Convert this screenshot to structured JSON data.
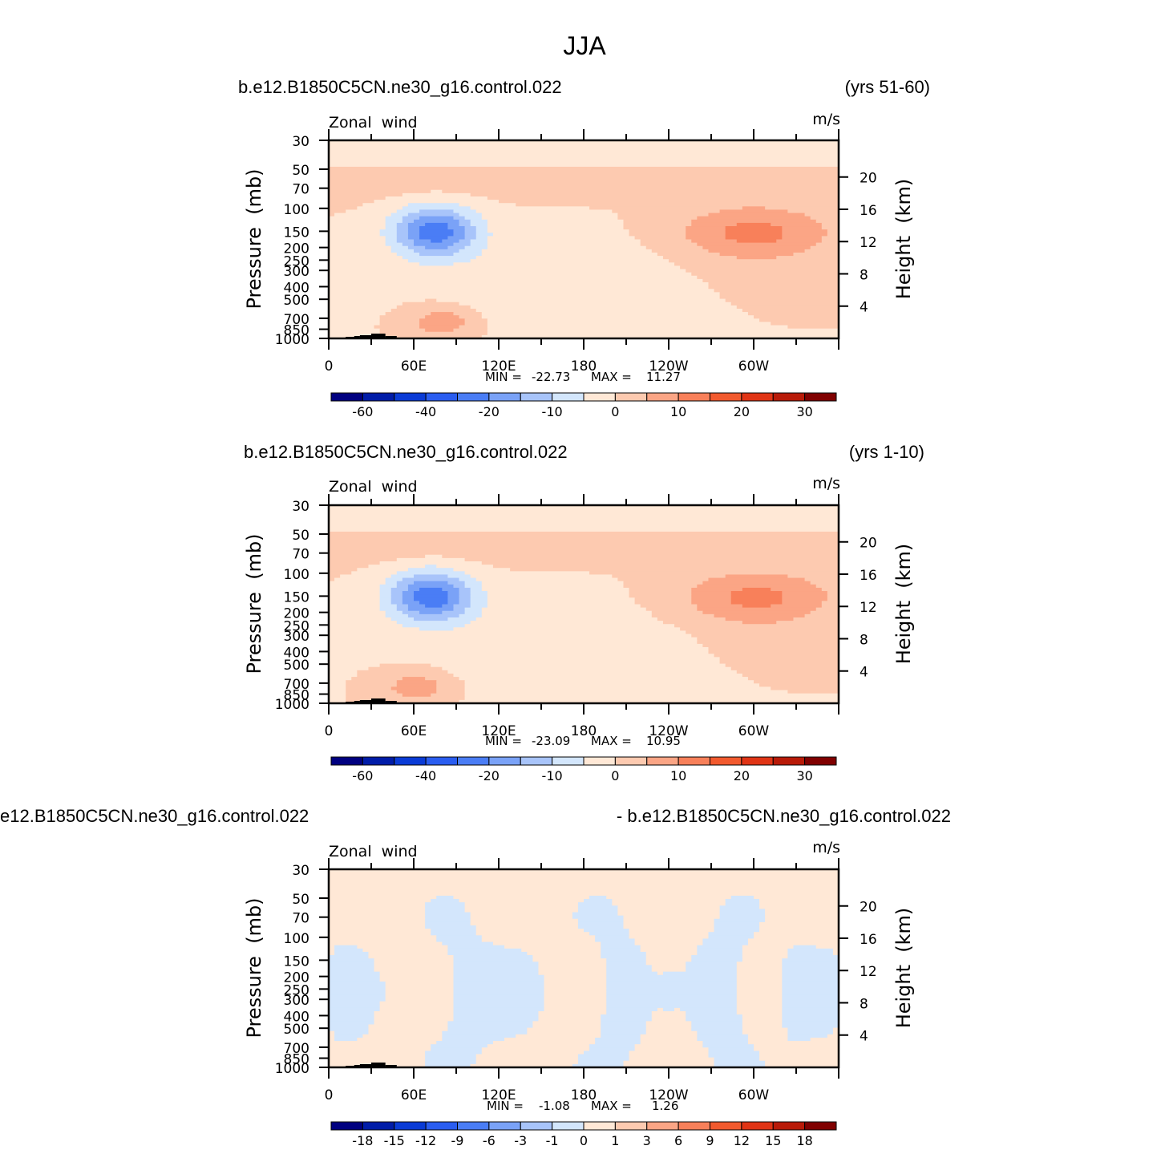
{
  "title": "JJA",
  "colors": {
    "div_main": [
      "#000080",
      "#001ca8",
      "#0a3bd6",
      "#2a5df0",
      "#4a7df5",
      "#7aa2f7",
      "#a8c4fa",
      "#d3e6fc",
      "#ffe8d6",
      "#fdcab0",
      "#fba585",
      "#f8805a",
      "#f25a2e",
      "#e03415",
      "#b81a08",
      "#800000"
    ],
    "div_diff": [
      "#000080",
      "#001ca8",
      "#0a3bd6",
      "#2a5df0",
      "#4a7df5",
      "#7aa2f7",
      "#a8c4fa",
      "#d3e6fc",
      "#ffe8d6",
      "#fdcab0",
      "#fba585",
      "#f8805a",
      "#f25a2e",
      "#e03415",
      "#b81a08",
      "#800000"
    ]
  },
  "chart_data": [
    {
      "type": "heatmap",
      "name": "panel-1",
      "title_left": "b.e12.B1850C5CN.ne30_g16.control.022",
      "title_right": "(yrs 51-60)",
      "variable": "Zonal  wind",
      "units": "m/s",
      "ylabel": "Pressure  (mb)",
      "ylabel_right": "Height  (km)",
      "y_ticks": [
        "30",
        "50",
        "70",
        "100",
        "150",
        "200",
        "250",
        "300",
        "400",
        "500",
        "700",
        "850",
        "1000"
      ],
      "y_tick_values": [
        30,
        50,
        70,
        100,
        150,
        200,
        250,
        300,
        400,
        500,
        700,
        850,
        1000
      ],
      "height_ticks": [
        "20",
        "16",
        "12",
        "8",
        "4"
      ],
      "height_values": [
        20,
        16,
        12,
        8,
        4
      ],
      "x_ticks": [
        "0",
        "60E",
        "120E",
        "180",
        "120W",
        "60W"
      ],
      "x_values": [
        0,
        60,
        120,
        180,
        240,
        300
      ],
      "xlim": [
        0,
        360
      ],
      "ylim": [
        1000,
        30
      ],
      "min_label": "MIN =",
      "min_value": "-22.73",
      "max_label": "MAX =",
      "max_value": "11.27",
      "colorbar_labels": [
        "-60",
        "-40",
        "-20",
        "-10",
        "0",
        "10",
        "20",
        "30"
      ],
      "colorbar_label_boundaries": [
        1,
        3,
        5,
        7,
        9,
        11,
        13,
        15
      ],
      "field": {
        "kind": "main",
        "strat_value": -3,
        "jet_east": {
          "lon": 75,
          "p": 150,
          "peak": -22.73
        },
        "jet_west": {
          "lon": 300,
          "p": 150,
          "peak": 11.27
        },
        "low_east": {
          "lon": 80,
          "p": 650,
          "peak": 9
        }
      }
    },
    {
      "type": "heatmap",
      "name": "panel-2",
      "title_left": "b.e12.B1850C5CN.ne30_g16.control.022",
      "title_right": "(yrs 1-10)",
      "variable": "Zonal  wind",
      "units": "m/s",
      "ylabel": "Pressure  (mb)",
      "ylabel_right": "Height  (km)",
      "y_ticks": [
        "30",
        "50",
        "70",
        "100",
        "150",
        "200",
        "250",
        "300",
        "400",
        "500",
        "700",
        "850",
        "1000"
      ],
      "y_tick_values": [
        30,
        50,
        70,
        100,
        150,
        200,
        250,
        300,
        400,
        500,
        700,
        850,
        1000
      ],
      "height_ticks": [
        "20",
        "16",
        "12",
        "8",
        "4"
      ],
      "height_values": [
        20,
        16,
        12,
        8,
        4
      ],
      "x_ticks": [
        "0",
        "60E",
        "120E",
        "180",
        "120W",
        "60W"
      ],
      "x_values": [
        0,
        60,
        120,
        180,
        240,
        300
      ],
      "xlim": [
        0,
        360
      ],
      "ylim": [
        1000,
        30
      ],
      "min_label": "MIN =",
      "min_value": "-23.09",
      "max_label": "MAX =",
      "max_value": "10.95",
      "colorbar_labels": [
        "-60",
        "-40",
        "-20",
        "-10",
        "0",
        "10",
        "20",
        "30"
      ],
      "colorbar_label_boundaries": [
        1,
        3,
        5,
        7,
        9,
        11,
        13,
        15
      ],
      "field": {
        "kind": "main",
        "strat_value": -3,
        "jet_east": {
          "lon": 72,
          "p": 150,
          "peak": -23.09
        },
        "jet_west": {
          "lon": 302,
          "p": 150,
          "peak": 10.95
        },
        "low_east": {
          "lon": 62,
          "p": 700,
          "peak": 9
        }
      }
    },
    {
      "type": "heatmap",
      "name": "panel-3",
      "title_left": "e12.B1850C5CN.ne30_g16.control.022",
      "title_right": "- b.e12.B1850C5CN.ne30_g16.control.022",
      "variable": "Zonal  wind",
      "units": "m/s",
      "ylabel": "Pressure  (mb)",
      "ylabel_right": "Height  (km)",
      "y_ticks": [
        "30",
        "50",
        "70",
        "100",
        "150",
        "200",
        "250",
        "300",
        "400",
        "500",
        "700",
        "850",
        "1000"
      ],
      "y_tick_values": [
        30,
        50,
        70,
        100,
        150,
        200,
        250,
        300,
        400,
        500,
        700,
        850,
        1000
      ],
      "height_ticks": [
        "20",
        "16",
        "12",
        "8",
        "4"
      ],
      "height_values": [
        20,
        16,
        12,
        8,
        4
      ],
      "x_ticks": [
        "0",
        "60E",
        "120E",
        "180",
        "120W",
        "60W"
      ],
      "x_values": [
        0,
        60,
        120,
        180,
        240,
        300
      ],
      "xlim": [
        0,
        360
      ],
      "ylim": [
        1000,
        30
      ],
      "min_label": "MIN =",
      "min_value": "-1.08",
      "max_label": "MAX =",
      "max_value": "1.26",
      "colorbar_labels": [
        "-18",
        "-15",
        "-12",
        "-9",
        "-6",
        "-3",
        "-1",
        "0",
        "1",
        "3",
        "6",
        "9",
        "12",
        "15",
        "18"
      ],
      "colorbar_label_boundaries": [
        1,
        2,
        3,
        4,
        5,
        6,
        7,
        8,
        9,
        10,
        11,
        12,
        13,
        14,
        15
      ],
      "field": {
        "kind": "diff",
        "negative_lon_ranges": [
          [
            0,
            30
          ],
          [
            80,
            145
          ],
          [
            190,
            225
          ],
          [
            255,
            295
          ],
          [
            320,
            360
          ]
        ]
      }
    }
  ]
}
